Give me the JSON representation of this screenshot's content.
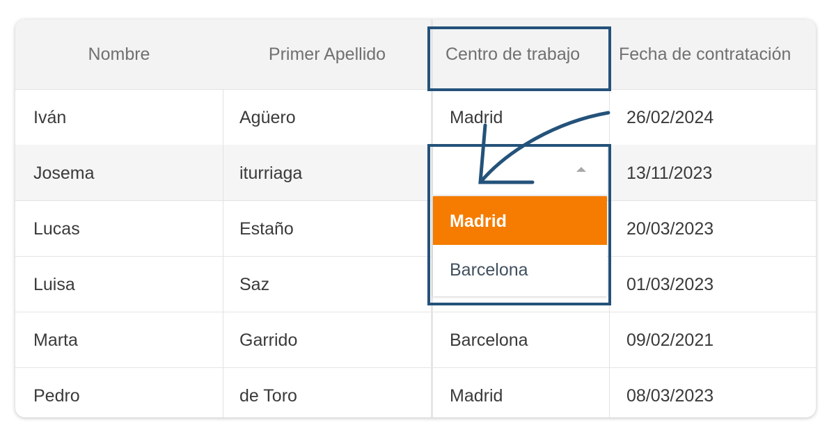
{
  "table": {
    "columns": [
      "Nombre",
      "Primer Apellido",
      "Centro de trabajo",
      "Fecha de contratación"
    ],
    "rows": [
      [
        "Iván",
        "Agüero",
        "Madrid",
        "26/02/2024"
      ],
      [
        "Josema",
        "iturriaga",
        "",
        "13/11/2023"
      ],
      [
        "Lucas",
        "Estaño",
        "",
        "20/03/2023"
      ],
      [
        "Luisa",
        "Saz",
        "",
        "01/03/2023"
      ],
      [
        "Marta",
        "Garrido",
        "Barcelona",
        "09/02/2021"
      ],
      [
        "Pedro",
        "de Toro",
        "Madrid",
        "08/03/2023"
      ]
    ]
  },
  "dropdown": {
    "options": [
      "Madrid",
      "Barcelona"
    ],
    "highlighted": "Madrid"
  },
  "colors": {
    "accent": "#f57c00",
    "annotation": "#24527a"
  }
}
